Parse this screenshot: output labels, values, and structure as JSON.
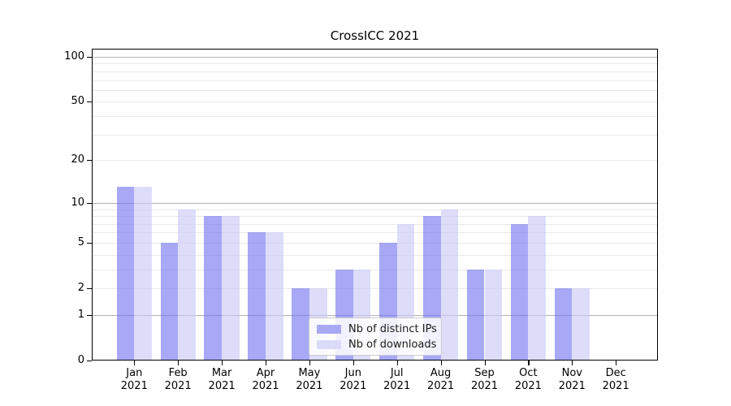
{
  "chart_data": {
    "type": "bar",
    "title": "CrossICC 2021",
    "year": "2021",
    "months": [
      "Jan",
      "Feb",
      "Mar",
      "Apr",
      "May",
      "Jun",
      "Jul",
      "Aug",
      "Sep",
      "Oct",
      "Nov",
      "Dec"
    ],
    "series": [
      {
        "name": "Nb of distinct IPs",
        "color": "#a8a8f5",
        "fill": "rgba(115,115,240,0.62)",
        "values": [
          13,
          5,
          8,
          6,
          2,
          3,
          5,
          8,
          3,
          7,
          2,
          0
        ]
      },
      {
        "name": "Nb of downloads",
        "color": "#dadaf9",
        "fill": "rgba(200,200,245,0.62)",
        "values": [
          13,
          9,
          8,
          6,
          2,
          3,
          7,
          9,
          3,
          8,
          2,
          0
        ]
      }
    ],
    "yscale": "log1p",
    "ylim": [
      0,
      113
    ],
    "yticks": [
      100,
      50,
      20,
      10,
      5,
      2,
      1,
      0
    ],
    "grid": {
      "major": [
        100,
        10,
        1
      ],
      "minor": [
        90,
        80,
        70,
        60,
        50,
        40,
        30,
        20,
        9,
        8,
        7,
        6,
        5,
        4,
        3,
        2
      ],
      "major_color": "#b3b3b3",
      "minor_color": "#e9e9e9"
    },
    "legend": {
      "position": "lower center",
      "entries": [
        "Nb of distinct IPs",
        "Nb of downloads"
      ]
    }
  }
}
